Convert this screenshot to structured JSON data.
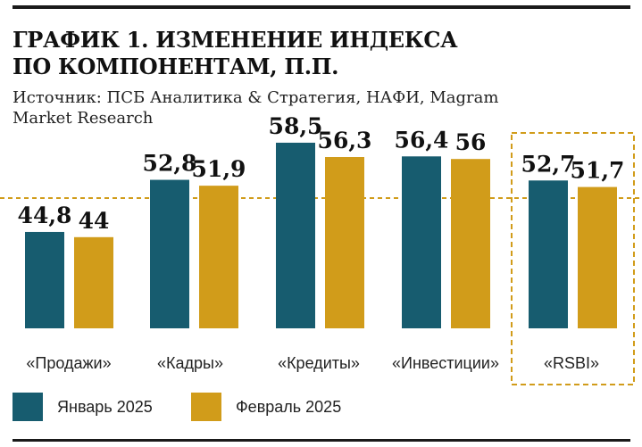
{
  "header": {
    "title_line1": "ГРАФИК 1. ИЗМЕНЕНИЕ ИНДЕКСА",
    "title_line2": "ПО КОМПОНЕНТАМ, П.П.",
    "source_line1": "Источник: ПСБ Аналитика & Стратегия, НАФИ, Magram",
    "source_line2": "Market Research"
  },
  "colors": {
    "january": "#175c6f",
    "february": "#d19c1a",
    "reference_line": "#d19c1a",
    "highlight_box": "#d19c1a"
  },
  "chart_data": {
    "type": "bar",
    "categories": [
      "«Продажи»",
      "«Кадры»",
      "«Кредиты»",
      "«Инвестиции»",
      "«RSBI»"
    ],
    "series": [
      {
        "name": "Январь 2025",
        "values": [
          44.8,
          52.8,
          58.5,
          56.4,
          52.7
        ],
        "labels": [
          "44,8",
          "52,8",
          "58,5",
          "56,4",
          "52,7"
        ]
      },
      {
        "name": "Февраль 2025",
        "values": [
          44,
          51.9,
          56.3,
          56,
          51.7
        ],
        "labels": [
          "44",
          "51,9",
          "56,3",
          "56",
          "51,7"
        ]
      }
    ],
    "reference_line": 50,
    "highlighted_category": "«RSBI»",
    "legend_position": "bottom-left",
    "grid": false
  }
}
